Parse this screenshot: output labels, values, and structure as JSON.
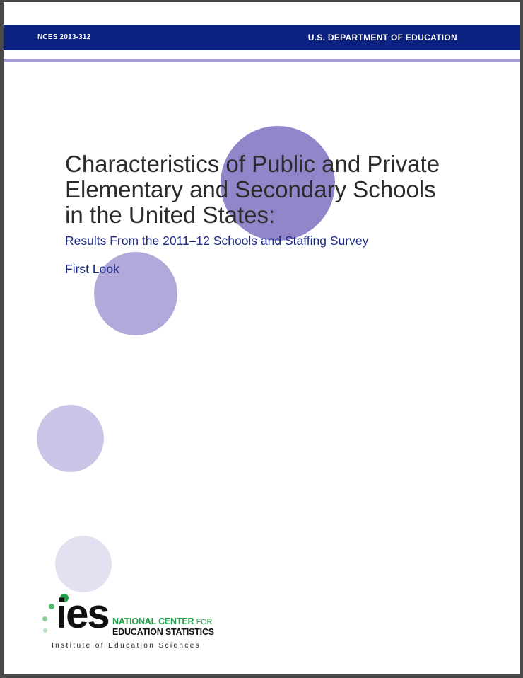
{
  "header": {
    "report_id": "NCES 2013-312",
    "department": "U.S. DEPARTMENT OF EDUCATION"
  },
  "cover": {
    "title_line1": "Characteristics of Public and Private",
    "title_line2": "Elementary and Secondary Schools",
    "title_line3": "in the United States:",
    "subtitle": "Results From the 2011–12 Schools and Staffing Survey",
    "series_label": "First Look"
  },
  "logo": {
    "wordmark": "ies",
    "org_line1_main": "NATIONAL CENTER",
    "org_line1_small": "FOR",
    "org_line2": "EDUCATION STATISTICS",
    "caption": "Institute of Education Sciences"
  },
  "colors": {
    "banner": "#0b2280",
    "stripe": "#a59cd3",
    "circle_1": "#9385c9",
    "circle_2": "#b2a9da",
    "circle_3": "#cac4e6",
    "circle_4": "#e3e0f2",
    "subtitle_text": "#1c2a80",
    "logo_green": "#22a14a"
  }
}
